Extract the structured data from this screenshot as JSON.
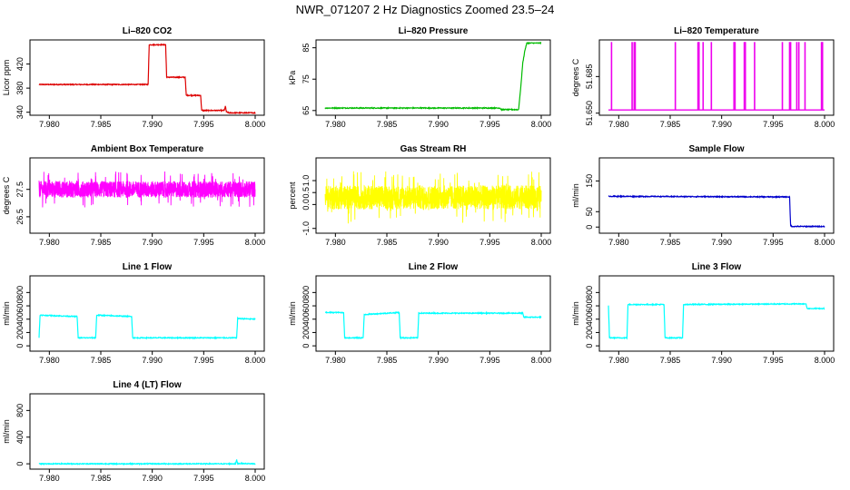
{
  "figure_title": "NWR_071207  2 Hz Diagnostics Zoomed 23.5–24",
  "chart_data": [
    {
      "type": "line",
      "title": "Li–820 CO2",
      "ylabel": "Licor ppm",
      "color": "#dd0000",
      "xlim": [
        7.979,
        8.0
      ],
      "ylim": [
        335,
        460
      ],
      "yticks": [
        "340",
        "380",
        "420"
      ],
      "yticks_v": [
        340,
        380,
        420
      ],
      "xticks": [
        "7.980",
        "7.985",
        "7.990",
        "7.995",
        "8.000"
      ],
      "xticks_v": [
        7.98,
        7.985,
        7.99,
        7.995,
        8.0
      ],
      "series": [
        {
          "x": [
            7.979,
            7.9896,
            7.9897,
            7.9913,
            7.9914,
            7.9932,
            7.9933,
            7.9947,
            7.9948,
            7.997,
            7.9971,
            7.9972,
            7.9974,
            7.999,
            8.0
          ],
          "y": [
            386,
            386,
            452,
            452,
            398,
            398,
            368,
            368,
            343,
            343,
            350,
            341,
            339,
            339,
            339
          ]
        }
      ]
    },
    {
      "type": "line",
      "title": "Li–820 Pressure",
      "ylabel": "kPa",
      "color": "#00bb00",
      "xlim": [
        7.979,
        8.0
      ],
      "ylim": [
        63.5,
        87.5
      ],
      "yticks": [
        "65",
        "75",
        "85"
      ],
      "yticks_v": [
        65,
        75,
        85
      ],
      "xticks": [
        "7.980",
        "7.985",
        "7.990",
        "7.995",
        "8.000"
      ],
      "xticks_v": [
        7.98,
        7.985,
        7.99,
        7.995,
        8.0
      ],
      "series": [
        {
          "x": [
            7.979,
            7.996,
            7.9961,
            7.9978,
            7.998,
            7.9982,
            7.9984,
            7.9986,
            8.0
          ],
          "y": [
            65.8,
            65.8,
            65.3,
            65.3,
            72,
            80,
            84,
            86.5,
            86.5
          ]
        }
      ]
    },
    {
      "type": "line",
      "title": "Li–820 Temperature",
      "ylabel": "degrees C",
      "color": "#ee00ee",
      "xlim": [
        7.979,
        8.0
      ],
      "ylim": [
        51.648,
        51.72
      ],
      "yticks": [
        "51.650",
        "51.685"
      ],
      "yticks_v": [
        51.65,
        51.685
      ],
      "xticks": [
        "7.980",
        "7.985",
        "7.990",
        "7.995",
        "8.000"
      ],
      "xticks_v": [
        7.98,
        7.985,
        7.99,
        7.995,
        8.0
      ],
      "baseline": 51.653,
      "spike_top": 51.718,
      "spikes": [
        7.9793,
        7.9813,
        7.9815,
        7.9816,
        7.9855,
        7.9877,
        7.9878,
        7.9882,
        7.989,
        7.9912,
        7.9913,
        7.9922,
        7.9923,
        7.9932,
        7.9959,
        7.9966,
        7.9967,
        7.9973,
        7.9975,
        7.9981,
        7.9997,
        7.9998
      ]
    },
    {
      "type": "line",
      "title": "Ambient Box Temperature",
      "ylabel": "degrees C",
      "color": "#ff00ff",
      "xlim": [
        7.979,
        8.0
      ],
      "ylim": [
        25.9,
        28.65
      ],
      "yticks": [
        "26.5",
        "27.5"
      ],
      "yticks_v": [
        26.5,
        27.5
      ],
      "xticks": [
        "7.980",
        "7.985",
        "7.990",
        "7.995",
        "8.000"
      ],
      "xticks_v": [
        7.98,
        7.985,
        7.99,
        7.995,
        8.0
      ],
      "noise": {
        "center": 27.5,
        "amp": 0.3,
        "min": 26.05,
        "max": 28.45
      }
    },
    {
      "type": "line",
      "title": "Gas Stream RH",
      "ylabel": "percent",
      "color": "#ffff00",
      "xlim": [
        7.979,
        8.0
      ],
      "ylim": [
        -1.2,
        1.95
      ],
      "yticks": [
        "-1.0",
        "0.0",
        "0.5",
        "1.0"
      ],
      "yticks_v": [
        -1.0,
        0.0,
        0.5,
        1.0
      ],
      "xticks": [
        "7.980",
        "7.985",
        "7.990",
        "7.995",
        "8.000"
      ],
      "xticks_v": [
        7.98,
        7.985,
        7.99,
        7.995,
        8.0
      ],
      "noise": {
        "center": 0.3,
        "amp": 0.5,
        "min": -1.1,
        "max": 1.7
      }
    },
    {
      "type": "line",
      "title": "Sample Flow",
      "ylabel": "ml/min",
      "color": "#0000cc",
      "xlim": [
        7.979,
        8.0
      ],
      "ylim": [
        -20,
        225
      ],
      "yticks": [
        "0",
        "50",
        "150"
      ],
      "yticks_v": [
        0,
        50,
        150
      ],
      "xticks": [
        "7.980",
        "7.985",
        "7.990",
        "7.995",
        "8.000"
      ],
      "xticks_v": [
        7.98,
        7.985,
        7.99,
        7.995,
        8.0
      ],
      "series": [
        {
          "x": [
            7.979,
            7.9966,
            7.9967,
            7.9968,
            8.0
          ],
          "y": [
            100,
            98,
            5,
            2,
            2
          ]
        }
      ]
    },
    {
      "type": "line",
      "title": "Line 1 Flow",
      "ylabel": "ml/min",
      "color": "#00ffff",
      "xlim": [
        7.979,
        8.0
      ],
      "ylim": [
        -80,
        1050
      ],
      "yticks": [
        "0",
        "200",
        "400",
        "600",
        "800"
      ],
      "yticks_v": [
        0,
        200,
        400,
        600,
        800
      ],
      "xticks": [
        "7.980",
        "7.985",
        "7.990",
        "7.995",
        "8.000"
      ],
      "xticks_v": [
        7.98,
        7.985,
        7.99,
        7.995,
        8.0
      ],
      "series": [
        {
          "x": [
            7.979,
            7.9791,
            7.9827,
            7.9828,
            7.9845,
            7.9846,
            7.988,
            7.9881,
            7.9982,
            7.9983,
            8.0
          ],
          "y": [
            120,
            460,
            440,
            120,
            120,
            460,
            440,
            120,
            120,
            410,
            400
          ]
        }
      ]
    },
    {
      "type": "line",
      "title": "Line 2 Flow",
      "ylabel": "ml/min",
      "color": "#00ffff",
      "xlim": [
        7.979,
        8.0
      ],
      "ylim": [
        -80,
        1050
      ],
      "yticks": [
        "0",
        "200",
        "400",
        "600",
        "800"
      ],
      "yticks_v": [
        0,
        200,
        400,
        600,
        800
      ],
      "xticks": [
        "7.980",
        "7.985",
        "7.990",
        "7.995",
        "8.000"
      ],
      "xticks_v": [
        7.98,
        7.985,
        7.99,
        7.995,
        8.0
      ],
      "series": [
        {
          "x": [
            7.979,
            7.9808,
            7.9809,
            7.9827,
            7.9828,
            7.9862,
            7.9863,
            7.988,
            7.9881,
            7.9982,
            7.9983,
            8.0
          ],
          "y": [
            500,
            500,
            120,
            120,
            470,
            500,
            120,
            120,
            490,
            490,
            430,
            430
          ]
        }
      ]
    },
    {
      "type": "line",
      "title": "Line 3 Flow",
      "ylabel": "ml/min",
      "color": "#00ffff",
      "xlim": [
        7.979,
        8.0
      ],
      "ylim": [
        -80,
        1050
      ],
      "yticks": [
        "0",
        "200",
        "400",
        "600",
        "800"
      ],
      "yticks_v": [
        0,
        200,
        400,
        600,
        800
      ],
      "xticks": [
        "7.980",
        "7.985",
        "7.990",
        "7.995",
        "8.000"
      ],
      "xticks_v": [
        7.98,
        7.985,
        7.99,
        7.995,
        8.0
      ],
      "series": [
        {
          "x": [
            7.979,
            7.9791,
            7.9808,
            7.9809,
            7.9844,
            7.9845,
            7.9862,
            7.9863,
            7.9982,
            7.9983,
            8.0
          ],
          "y": [
            600,
            120,
            120,
            620,
            620,
            120,
            120,
            620,
            630,
            560,
            560
          ]
        }
      ]
    },
    {
      "type": "line",
      "title": "Line 4 (LT) Flow",
      "ylabel": "ml/min",
      "color": "#00ffff",
      "xlim": [
        7.979,
        8.0
      ],
      "ylim": [
        -80,
        1050
      ],
      "yticks": [
        "0",
        "400",
        "800"
      ],
      "yticks_v": [
        0,
        400,
        800
      ],
      "xticks": [
        "7.980",
        "7.985",
        "7.990",
        "7.995",
        "8.000"
      ],
      "xticks_v": [
        7.98,
        7.985,
        7.99,
        7.995,
        8.0
      ],
      "series": [
        {
          "x": [
            7.979,
            7.9981,
            7.9982,
            7.9983,
            8.0
          ],
          "y": [
            0,
            0,
            60,
            5,
            0
          ]
        }
      ]
    }
  ]
}
